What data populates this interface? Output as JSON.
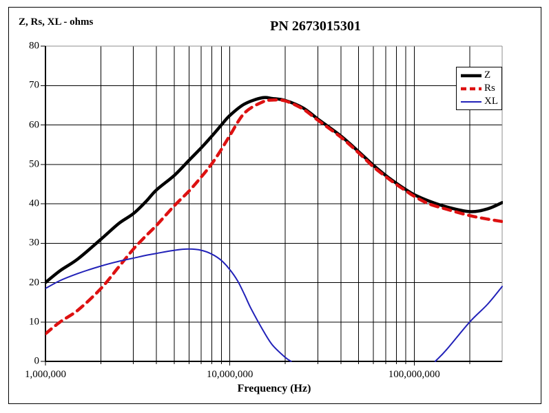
{
  "figure": {
    "title": "PN 2673015301",
    "y_axis_title": "Z, Rs, XL - ohms",
    "x_axis_title": "Frequency (Hz)"
  },
  "chart_data": {
    "type": "line",
    "title": "PN 2673015301",
    "xlabel": "Frequency (Hz)",
    "ylabel": "Z, Rs, XL - ohms",
    "x_scale": "log",
    "xlim_hz": [
      1000000,
      300000000
    ],
    "ylim": [
      0,
      80
    ],
    "y_tick_step": 10,
    "y_tick_labels": [
      "0",
      "10",
      "20",
      "30",
      "40",
      "50",
      "60",
      "70",
      "80"
    ],
    "x_major_ticks": [
      {
        "value_hz": 1000000,
        "label": "1,000,000"
      },
      {
        "value_hz": 10000000,
        "label": "10,000,000"
      },
      {
        "value_hz": 100000000,
        "label": "100,000,000"
      }
    ],
    "grid": true,
    "legend_position": "top-right-inside",
    "colors": {
      "Z": "#000000",
      "Rs": "#dd1111",
      "XL": "#2121b8",
      "grid": "#000000",
      "frame": "#8c8c8c"
    },
    "series": [
      {
        "name": "Z",
        "color": "#000000",
        "style": "solid",
        "width": 4.5,
        "freq_unit": "MHz",
        "value_unit": "ohms",
        "segments": [
          [
            [
              1,
              20
            ],
            [
              1.2,
              23
            ],
            [
              1.5,
              26
            ],
            [
              2,
              31
            ],
            [
              2.5,
              35
            ],
            [
              3,
              37.5
            ],
            [
              3.5,
              40.5
            ],
            [
              4,
              43.5
            ],
            [
              5,
              47.2
            ],
            [
              6,
              51
            ],
            [
              7,
              54.2
            ],
            [
              8,
              57.2
            ],
            [
              9,
              60
            ],
            [
              10,
              62.4
            ],
            [
              12,
              65.3
            ],
            [
              15,
              66.9
            ],
            [
              17,
              66.7
            ],
            [
              20,
              66.2
            ],
            [
              25,
              64.3
            ],
            [
              30,
              61.5
            ],
            [
              40,
              57.2
            ],
            [
              50,
              53.2
            ],
            [
              60,
              49.8
            ],
            [
              70,
              47.2
            ],
            [
              80,
              45.2
            ],
            [
              90,
              43.6
            ],
            [
              100,
              42.3
            ],
            [
              120,
              40.7
            ],
            [
              150,
              39.2
            ],
            [
              200,
              38
            ],
            [
              250,
              38.7
            ],
            [
              300,
              40.3
            ]
          ]
        ]
      },
      {
        "name": "Rs",
        "color": "#dd1111",
        "style": "dashed",
        "width": 4.5,
        "freq_unit": "MHz",
        "value_unit": "ohms",
        "segments": [
          [
            [
              1,
              7
            ],
            [
              1.2,
              10
            ],
            [
              1.5,
              13
            ],
            [
              2,
              18.5
            ],
            [
              2.5,
              24
            ],
            [
              3,
              28.5
            ],
            [
              3.5,
              31.8
            ],
            [
              4,
              34.5
            ],
            [
              5,
              39.5
            ],
            [
              6,
              43.2
            ],
            [
              7,
              46.8
            ],
            [
              8,
              50.2
            ],
            [
              9,
              53.8
            ],
            [
              10,
              57.3
            ],
            [
              12,
              63
            ],
            [
              15,
              65.8
            ],
            [
              17,
              66.3
            ],
            [
              20,
              66.1
            ],
            [
              25,
              64
            ],
            [
              30,
              61.2
            ],
            [
              40,
              56.9
            ],
            [
              50,
              52.9
            ],
            [
              60,
              49.4
            ],
            [
              70,
              46.9
            ],
            [
              80,
              44.9
            ],
            [
              90,
              43.3
            ],
            [
              100,
              41.9
            ],
            [
              120,
              40
            ],
            [
              150,
              38.6
            ],
            [
              200,
              37
            ],
            [
              250,
              36.1
            ],
            [
              300,
              35.5
            ]
          ]
        ]
      },
      {
        "name": "XL",
        "color": "#2121b8",
        "style": "solid",
        "width": 2,
        "freq_unit": "MHz",
        "value_unit": "ohms",
        "segments": [
          [
            [
              1,
              18.5
            ],
            [
              1.2,
              20.5
            ],
            [
              1.5,
              22.3
            ],
            [
              2,
              24.2
            ],
            [
              2.5,
              25.4
            ],
            [
              3,
              26.2
            ],
            [
              3.5,
              26.9
            ],
            [
              4,
              27.4
            ],
            [
              5,
              28.2
            ],
            [
              6,
              28.5
            ],
            [
              7,
              28.2
            ],
            [
              8,
              27.2
            ],
            [
              9,
              25.6
            ],
            [
              10,
              23.3
            ],
            [
              11,
              20.5
            ],
            [
              12,
              17
            ],
            [
              13,
              13.5
            ],
            [
              15,
              8.2
            ],
            [
              17,
              4.2
            ],
            [
              20,
              1
            ],
            [
              21.5,
              0
            ]
          ],
          [
            [
              130,
              0
            ],
            [
              150,
              3
            ],
            [
              200,
              10
            ],
            [
              250,
              14.5
            ],
            [
              300,
              19
            ]
          ]
        ]
      }
    ]
  },
  "legend": {
    "entries": [
      {
        "label": "Z"
      },
      {
        "label": "Rs"
      },
      {
        "label": "XL"
      }
    ]
  }
}
